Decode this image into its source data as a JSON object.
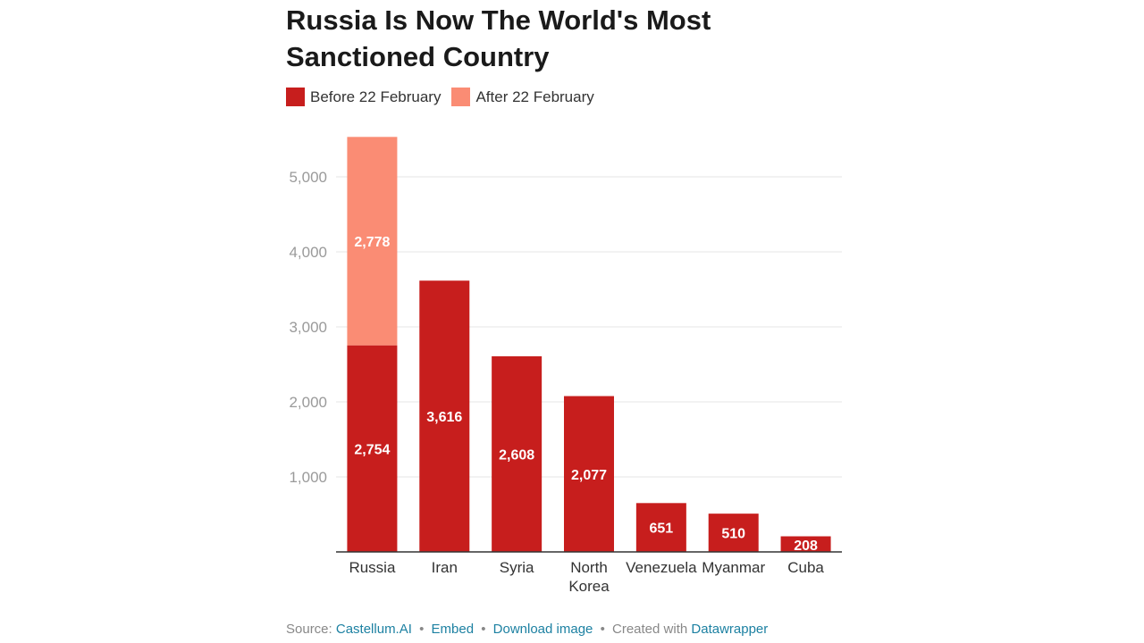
{
  "title_line1": "Russia Is Now The World's Most",
  "title_line2": "Sanctioned Country",
  "colors": {
    "before": "#c71e1d",
    "after": "#fa8c74",
    "grid": "#e6e6e6",
    "tick_label": "#9a9a9a",
    "category_label": "#333333",
    "bar_label": "#ffffff"
  },
  "legend": [
    {
      "label": "Before 22 February",
      "color": "#c71e1d"
    },
    {
      "label": "After 22 February",
      "color": "#fa8c74"
    }
  ],
  "chart_data": {
    "type": "bar",
    "stacked": true,
    "title": "Russia Is Now The World's Most Sanctioned Country",
    "categories": [
      "Russia",
      "Iran",
      "Syria",
      "North Korea",
      "Venezuela",
      "Myanmar",
      "Cuba"
    ],
    "category_lines": [
      [
        "Russia"
      ],
      [
        "Iran"
      ],
      [
        "Syria"
      ],
      [
        "North",
        "Korea"
      ],
      [
        "Venezuela"
      ],
      [
        "Myanmar"
      ],
      [
        "Cuba"
      ]
    ],
    "series": [
      {
        "name": "Before 22 February",
        "values": [
          2754,
          3616,
          2608,
          2077,
          651,
          510,
          208
        ],
        "labels": [
          "2,754",
          "3,616",
          "2,608",
          "2,077",
          "651",
          "510",
          "208"
        ]
      },
      {
        "name": "After 22 February",
        "values": [
          2778,
          0,
          0,
          0,
          0,
          0,
          0
        ],
        "labels": [
          "2,778",
          "",
          "",
          "",
          "",
          "",
          ""
        ]
      }
    ],
    "yticks": [
      1000,
      2000,
      3000,
      4000,
      5000
    ],
    "ytick_labels": [
      "1,000",
      "2,000",
      "3,000",
      "4,000",
      "5,000"
    ],
    "ylim": [
      0,
      5600
    ],
    "grid": true,
    "xlabel": "",
    "ylabel": ""
  },
  "footer": {
    "source_prefix": "Source:",
    "source_link": "Castellum.AI",
    "embed": "Embed",
    "download": "Download image",
    "created_with": "Created with",
    "datawrapper": "Datawrapper",
    "separator": "•"
  }
}
